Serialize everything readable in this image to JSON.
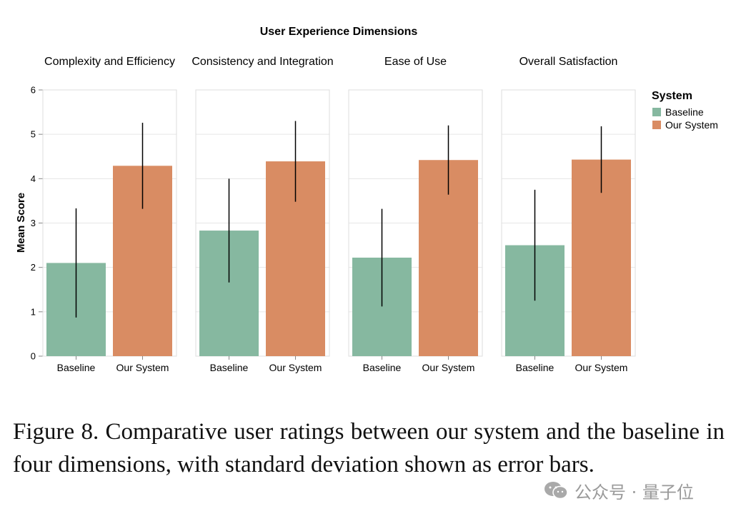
{
  "chart_data": {
    "type": "bar",
    "title": "User Experience Dimensions",
    "ylabel": "Mean Score",
    "ylim": [
      0,
      6
    ],
    "yticks": [
      0,
      1,
      2,
      3,
      4,
      5,
      6
    ],
    "grid": true,
    "categories": [
      "Baseline",
      "Our System"
    ],
    "legend": {
      "title": "System",
      "position": "top-right",
      "entries": [
        {
          "label": "Baseline",
          "color": "#86b8a0"
        },
        {
          "label": "Our System",
          "color": "#d98c63"
        }
      ]
    },
    "facets": [
      {
        "name": "Complexity and Efficiency",
        "bars": [
          {
            "system": "Baseline",
            "mean": 2.1,
            "sd": 1.23
          },
          {
            "system": "Our System",
            "mean": 4.29,
            "sd": 0.97
          }
        ]
      },
      {
        "name": "Consistency and Integration",
        "bars": [
          {
            "system": "Baseline",
            "mean": 2.83,
            "sd": 1.17
          },
          {
            "system": "Our System",
            "mean": 4.39,
            "sd": 0.91
          }
        ]
      },
      {
        "name": "Ease of Use",
        "bars": [
          {
            "system": "Baseline",
            "mean": 2.22,
            "sd": 1.1
          },
          {
            "system": "Our System",
            "mean": 4.42,
            "sd": 0.78
          }
        ]
      },
      {
        "name": "Overall Satisfaction",
        "bars": [
          {
            "system": "Baseline",
            "mean": 2.5,
            "sd": 1.25
          },
          {
            "system": "Our System",
            "mean": 4.43,
            "sd": 0.75
          }
        ]
      }
    ]
  },
  "caption": "Figure 8.  Comparative user ratings between our system and the baseline in four dimensions, with standard deviation shown as error bars.",
  "watermark": {
    "icon": "wechat-icon",
    "text": "公众号 · 量子位"
  }
}
